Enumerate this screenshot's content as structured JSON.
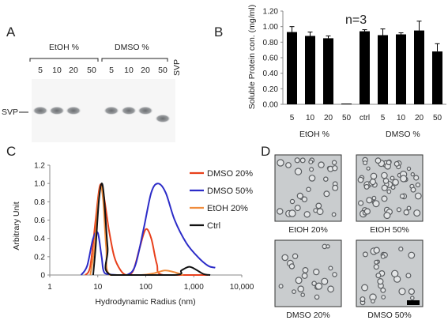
{
  "panels": {
    "a": {
      "letter": "A"
    },
    "b": {
      "letter": "B"
    },
    "c": {
      "letter": "C"
    },
    "d": {
      "letter": "D"
    }
  },
  "gel": {
    "group_labels": [
      "EtOH %",
      "DMSO %"
    ],
    "lanes": [
      {
        "label": "5",
        "band": true
      },
      {
        "label": "10",
        "band": true
      },
      {
        "label": "20",
        "band": true
      },
      {
        "label": "50",
        "band": false
      },
      {
        "label": "5",
        "band": true
      },
      {
        "label": "10",
        "band": true
      },
      {
        "label": "20",
        "band": true
      },
      {
        "label": "50",
        "band": true
      }
    ],
    "svp_rotated_label": "SVP",
    "marker_label": "SVP"
  },
  "micrographs": {
    "captions": [
      "EtOH 20%",
      "EtOH 50%",
      "DMSO 20%",
      "DMSO 50%"
    ],
    "background": "#c9ccce",
    "particle_color": "#5a5d60"
  },
  "chart_data": [
    {
      "type": "bar",
      "annotation": "n=3",
      "categories": [
        "5",
        "10",
        "20",
        "50",
        "ctrl",
        "5",
        "10",
        "20",
        "50"
      ],
      "group_labels": [
        "EtOH %",
        "DMSO %"
      ],
      "values": [
        0.93,
        0.88,
        0.85,
        0.01,
        0.94,
        0.89,
        0.9,
        0.95,
        0.68
      ],
      "errors": [
        0.07,
        0.05,
        0.03,
        0.0,
        0.02,
        0.08,
        0.02,
        0.12,
        0.1
      ],
      "ylabel": "Soluble Protein con. (mg/ml)",
      "ylim": [
        0,
        1.2
      ],
      "yticks": [
        "0.00",
        "0.20",
        "0.40",
        "0.60",
        "0.80",
        "1.00",
        "1.20"
      ],
      "bar_color": "#000000"
    },
    {
      "type": "line",
      "xscale": "log",
      "xlim": [
        1,
        10000
      ],
      "ylim": [
        0,
        1.2
      ],
      "xticks": [
        "1",
        "10",
        "100",
        "1,000",
        "10,000"
      ],
      "yticks": [
        "0",
        "0.2",
        "0.4",
        "0.6",
        "0.8",
        "1.0",
        "1.2"
      ],
      "xlabel": "Hydrodynamic Radius (nm)",
      "ylabel": "Arbitrary Unit",
      "legend_position": "top-right",
      "series": [
        {
          "name": "DMSO 20%",
          "color": "#e8401c",
          "points": [
            [
              5.5,
              0
            ],
            [
              7,
              0.1
            ],
            [
              9,
              0.6
            ],
            [
              11,
              0.97
            ],
            [
              13,
              0.9
            ],
            [
              17,
              0.5
            ],
            [
              22,
              0.2
            ],
            [
              30,
              0.05
            ],
            [
              40,
              0
            ],
            [
              55,
              0.05
            ],
            [
              75,
              0.3
            ],
            [
              100,
              0.5
            ],
            [
              130,
              0.4
            ],
            [
              170,
              0.12
            ],
            [
              230,
              0
            ],
            [
              2000,
              0
            ]
          ]
        },
        {
          "name": "DMSO 50%",
          "color": "#2c2cc8",
          "points": [
            [
              4.5,
              0
            ],
            [
              6,
              0.1
            ],
            [
              8,
              0.4
            ],
            [
              10,
              0.46
            ],
            [
              12,
              0.2
            ],
            [
              14,
              0.02
            ],
            [
              25,
              0
            ],
            [
              40,
              0
            ],
            [
              60,
              0.1
            ],
            [
              90,
              0.5
            ],
            [
              130,
              0.9
            ],
            [
              180,
              1.0
            ],
            [
              260,
              0.9
            ],
            [
              400,
              0.6
            ],
            [
              700,
              0.35
            ],
            [
              1200,
              0.2
            ],
            [
              2000,
              0.1
            ],
            [
              2800,
              0.08
            ]
          ]
        },
        {
          "name": "EtOH 20%",
          "color": "#f08c3c",
          "points": [
            [
              7,
              0
            ],
            [
              8.5,
              0.3
            ],
            [
              10,
              0.75
            ],
            [
              11.5,
              0.97
            ],
            [
              13,
              0.8
            ],
            [
              15,
              0.3
            ],
            [
              18,
              0
            ],
            [
              80,
              0
            ],
            [
              150,
              0.02
            ],
            [
              250,
              0.05
            ],
            [
              400,
              0.03
            ],
            [
              600,
              0
            ]
          ]
        },
        {
          "name": "Ctrl",
          "color": "#111111",
          "points": [
            [
              8,
              0
            ],
            [
              9,
              0.3
            ],
            [
              10.5,
              0.8
            ],
            [
              12,
              1.0
            ],
            [
              13.5,
              0.85
            ],
            [
              16,
              0.3
            ],
            [
              19,
              0
            ],
            [
              400,
              0
            ],
            [
              550,
              0.05
            ],
            [
              800,
              0.09
            ],
            [
              1100,
              0.06
            ],
            [
              1600,
              0.01
            ],
            [
              2200,
              0
            ]
          ]
        }
      ]
    }
  ]
}
